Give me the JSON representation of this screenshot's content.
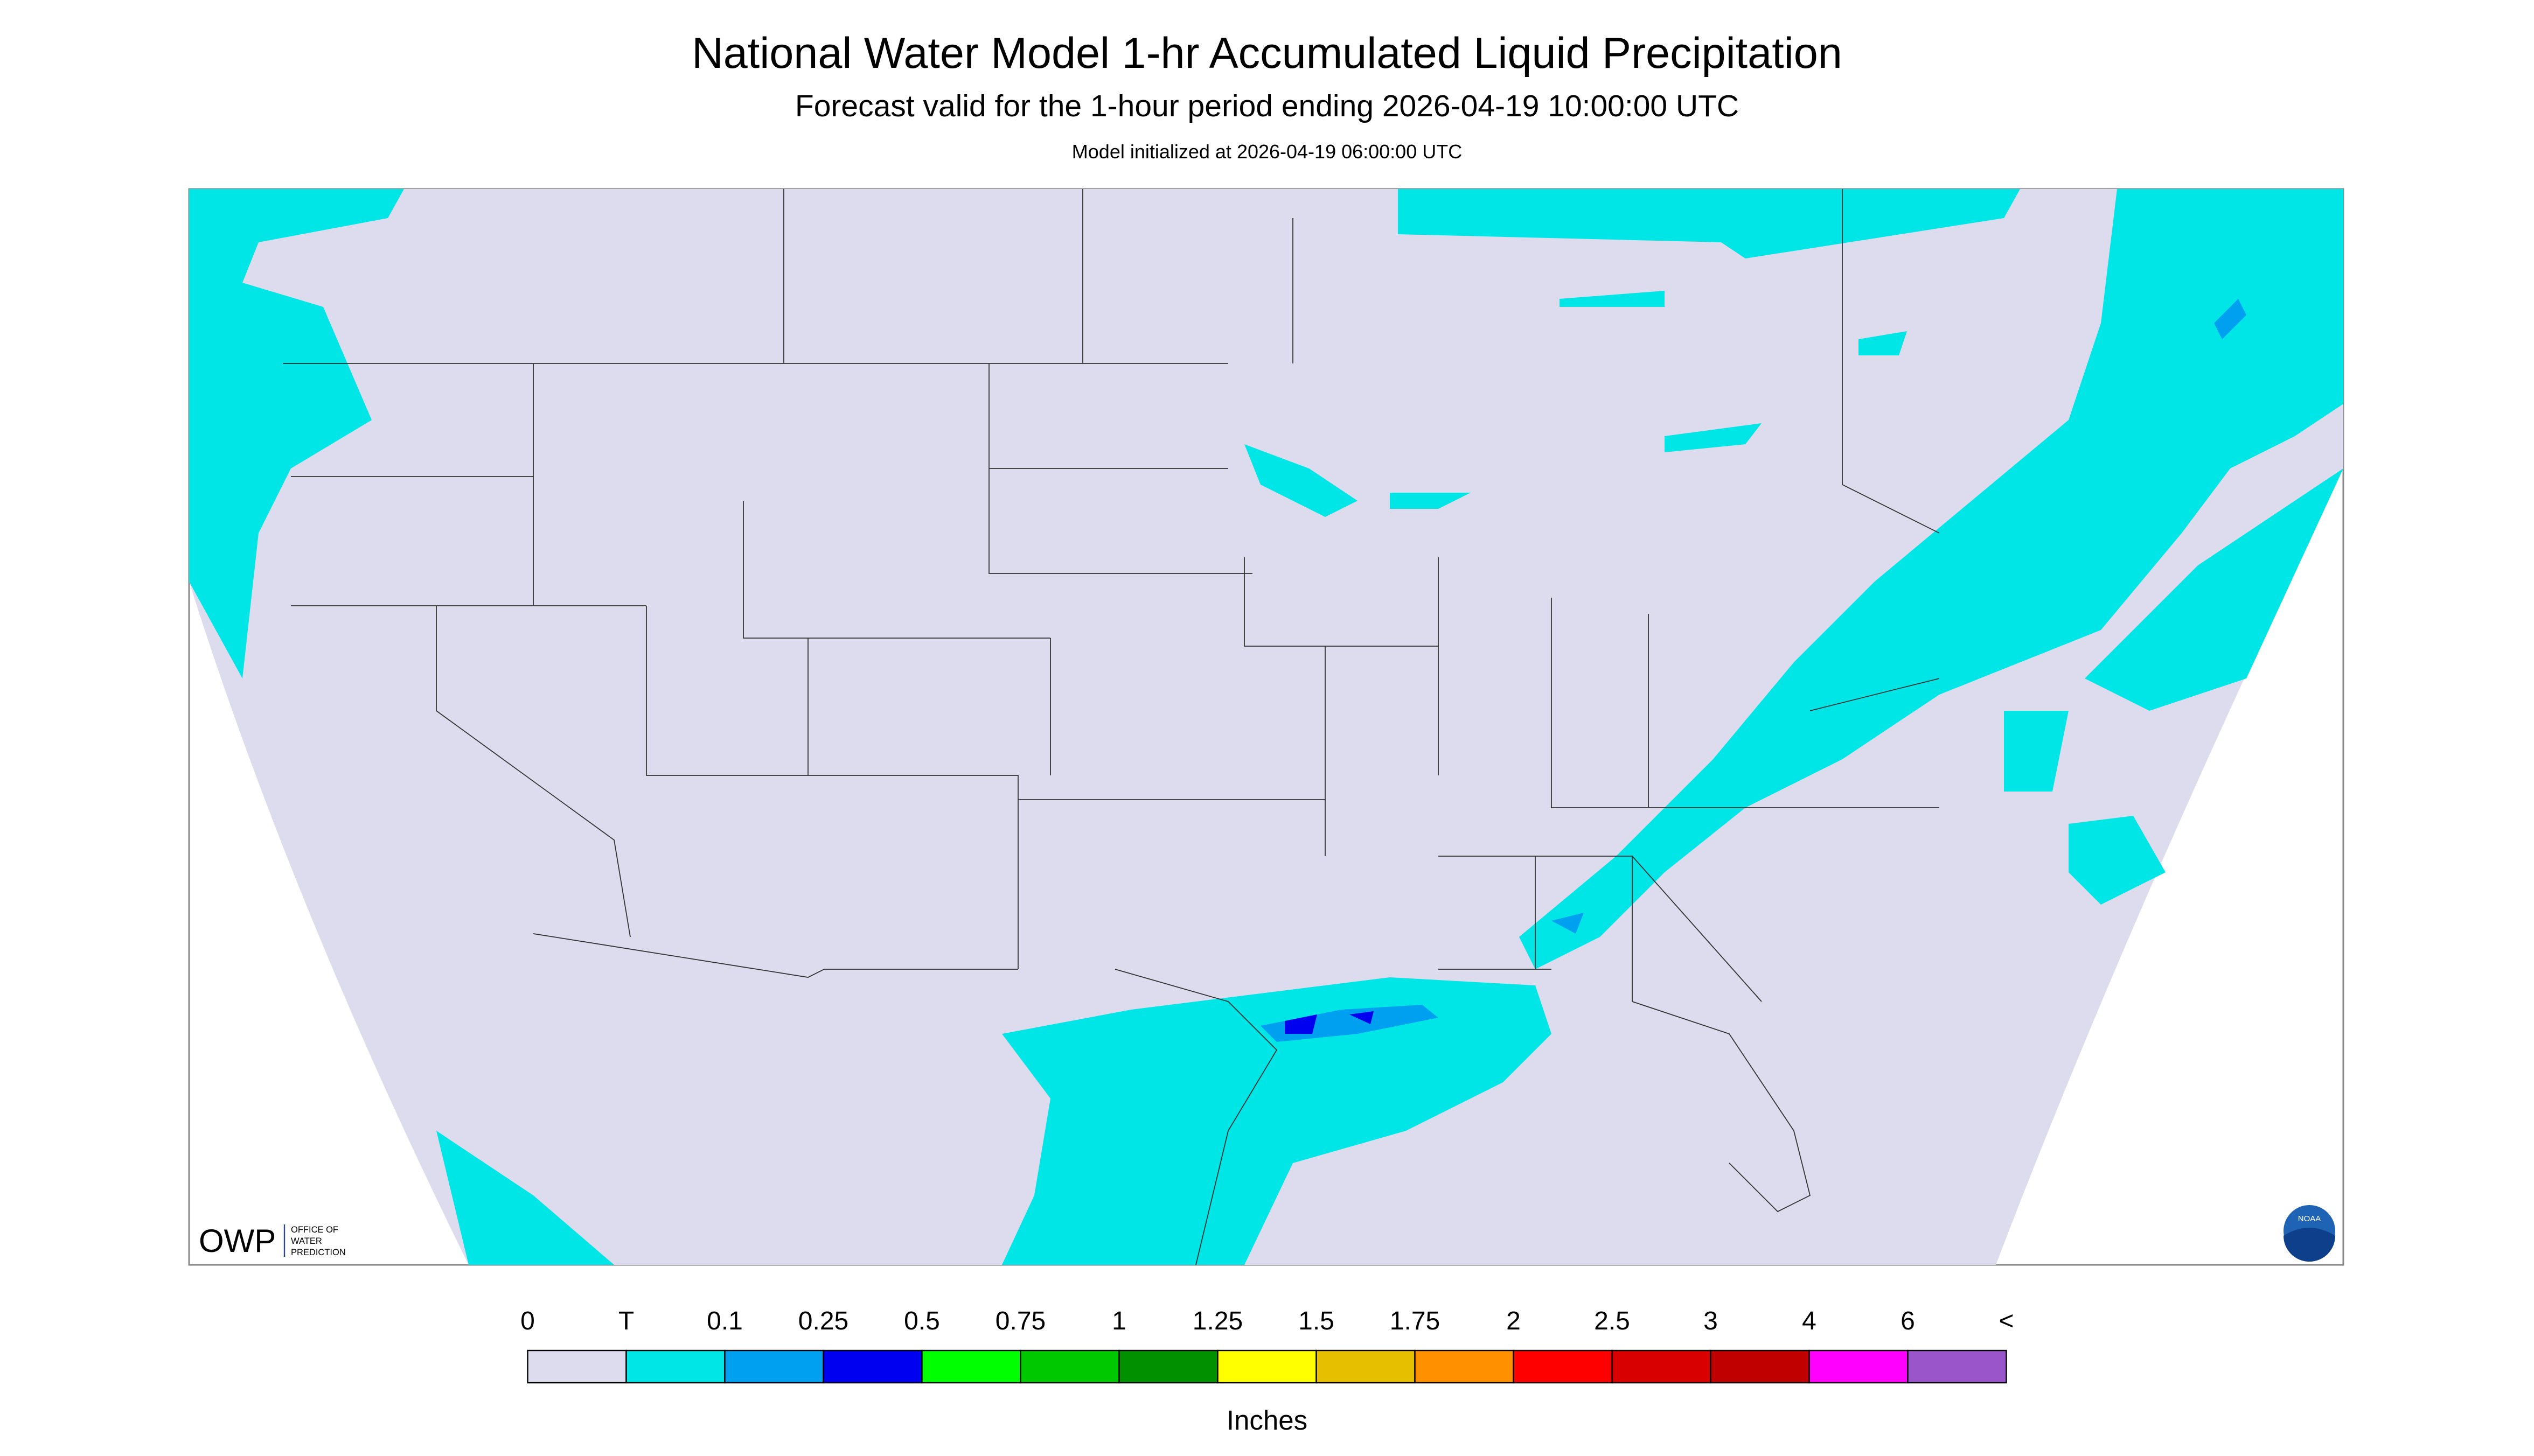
{
  "header": {
    "title": "National Water Model 1-hr Accumulated Liquid Precipitation",
    "subtitle": "Forecast valid for the 1-hour period ending 2026-04-19 10:00:00 UTC",
    "init": "Model initialized at 2026-04-19 06:00:00 UTC"
  },
  "logos": {
    "owp": "OWP",
    "owp_lines": [
      "OFFICE OF",
      "WATER",
      "PREDICTION"
    ],
    "noaa": "NOAA"
  },
  "legend": {
    "labels": [
      "0",
      "T",
      "0.1",
      "0.25",
      "0.5",
      "0.75",
      "1",
      "1.25",
      "1.5",
      "1.75",
      "2",
      "2.5",
      "3",
      "4",
      "6",
      "<"
    ],
    "colors": [
      "#dcdcee",
      "#00e6e6",
      "#00a0f0",
      "#0000f0",
      "#00ff00",
      "#00c800",
      "#009000",
      "#ffff00",
      "#e6c000",
      "#ff9000",
      "#ff0000",
      "#d80000",
      "#c00000",
      "#ff00ff",
      "#9955c9"
    ],
    "unit": "Inches"
  }
}
